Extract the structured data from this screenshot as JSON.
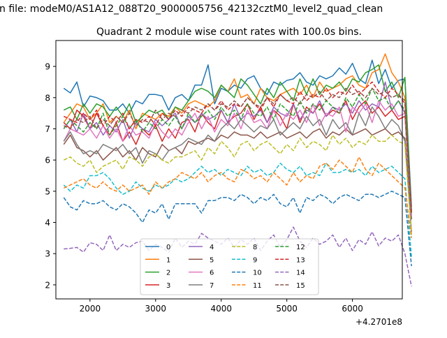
{
  "suptitle": "n file: modeM0/AS1A12_088T20_9000005756_42132cztM0_level2_quad_clean",
  "chart_data": {
    "type": "line",
    "title": "Quadrant 2 module wise count rates with 100.0s bins.",
    "xlabel": "",
    "ylabel": "",
    "x_offset_label": "+4.2701e8",
    "xlim": [
      1480,
      6760
    ],
    "ylim": [
      1.55,
      9.83
    ],
    "xticks": [
      2000,
      3000,
      4000,
      5000,
      6000
    ],
    "yticks": [
      2,
      3,
      4,
      5,
      6,
      7,
      8,
      9
    ],
    "grid": false,
    "legend": {
      "placement": "bottom-center",
      "columns": 4
    },
    "x_start": 1600,
    "x_step": 100,
    "series": [
      {
        "name": "0",
        "color": "#1f77b4",
        "dash": "solid",
        "values": [
          8.3,
          8.15,
          8.5,
          7.7,
          8.05,
          8.0,
          7.9,
          7.6,
          7.6,
          7.8,
          7.5,
          7.9,
          7.8,
          8.1,
          8.1,
          8.05,
          7.6,
          8.0,
          8.1,
          7.9,
          8.4,
          8.4,
          9.05,
          7.8,
          8.3,
          8.2,
          8.4,
          8.3,
          8.6,
          8.7,
          8.3,
          8.1,
          8.5,
          8.4,
          8.55,
          8.6,
          8.8,
          8.5,
          8.4,
          8.7,
          8.6,
          8.7,
          8.95,
          8.75,
          9.1,
          8.6,
          8.45,
          9.2,
          8.45,
          8.9,
          8.3,
          8.55,
          8.6,
          4.5
        ]
      },
      {
        "name": "1",
        "color": "#ff7f0e",
        "dash": "solid",
        "values": [
          7.2,
          7.5,
          7.8,
          7.7,
          7.3,
          7.5,
          7.8,
          7.2,
          7.4,
          7.2,
          7.6,
          7.0,
          7.5,
          7.4,
          7.3,
          7.5,
          7.4,
          7.7,
          7.5,
          7.8,
          7.9,
          7.8,
          7.7,
          7.9,
          8.4,
          8.2,
          8.6,
          8.0,
          8.1,
          7.8,
          8.3,
          8.0,
          7.9,
          8.1,
          8.2,
          8.3,
          8.1,
          8.4,
          8.0,
          8.5,
          8.2,
          8.3,
          8.4,
          8.6,
          8.7,
          8.4,
          8.3,
          8.8,
          8.9,
          9.4,
          8.8,
          8.5,
          8.0,
          4.3
        ]
      },
      {
        "name": "2",
        "color": "#2ca02c",
        "dash": "solid",
        "values": [
          7.6,
          7.7,
          7.3,
          7.8,
          7.5,
          7.8,
          7.7,
          7.4,
          7.7,
          7.4,
          7.8,
          7.2,
          7.4,
          7.6,
          7.5,
          7.6,
          7.3,
          7.7,
          7.6,
          7.9,
          8.2,
          8.3,
          8.2,
          8.0,
          8.4,
          8.2,
          8.0,
          8.6,
          8.4,
          8.1,
          7.8,
          8.3,
          8.0,
          8.5,
          8.2,
          7.9,
          8.6,
          8.1,
          8.6,
          8.1,
          8.4,
          8.3,
          8.5,
          8.2,
          8.6,
          8.5,
          8.8,
          8.9,
          9.05,
          8.2,
          8.5,
          8.0,
          8.65,
          4.3
        ]
      },
      {
        "name": "3",
        "color": "#d62728",
        "dash": "solid",
        "values": [
          7.2,
          7.0,
          7.6,
          7.4,
          7.0,
          7.5,
          7.1,
          6.8,
          7.2,
          6.6,
          6.9,
          6.5,
          7.0,
          6.8,
          7.1,
          6.6,
          7.0,
          6.7,
          7.2,
          7.3,
          6.9,
          7.5,
          7.2,
          7.0,
          7.6,
          7.2,
          7.4,
          7.5,
          7.8,
          7.3,
          7.7,
          7.2,
          7.6,
          7.4,
          7.0,
          7.8,
          7.2,
          7.7,
          7.5,
          7.8,
          7.4,
          7.6,
          7.5,
          7.9,
          7.3,
          7.7,
          7.9,
          7.5,
          7.7,
          7.4,
          7.6,
          7.3,
          7.4,
          4.2
        ]
      },
      {
        "name": "4",
        "color": "#9467bd",
        "dash": "solid",
        "values": [
          7.0,
          7.3,
          6.9,
          7.5,
          7.0,
          7.2,
          6.8,
          7.1,
          6.9,
          7.3,
          6.7,
          7.2,
          7.0,
          6.9,
          7.3,
          7.1,
          7.3,
          7.5,
          7.0,
          7.4,
          7.2,
          7.5,
          7.3,
          7.4,
          7.6,
          7.2,
          7.8,
          7.3,
          7.5,
          7.4,
          7.6,
          7.2,
          7.7,
          7.5,
          7.4,
          7.8,
          7.3,
          7.6,
          7.5,
          7.9,
          7.4,
          7.7,
          7.6,
          7.8,
          7.5,
          7.9,
          7.6,
          7.8,
          7.7,
          8.5,
          7.6,
          7.9,
          7.5,
          4.1
        ]
      },
      {
        "name": "5",
        "color": "#8c564b",
        "dash": "solid",
        "values": [
          6.5,
          6.8,
          6.4,
          6.3,
          6.1,
          6.3,
          6.0,
          6.2,
          6.4,
          6.1,
          6.3,
          6.0,
          6.4,
          6.2,
          6.1,
          6.5,
          6.3,
          6.4,
          6.2,
          6.6,
          6.5,
          6.6,
          6.7,
          6.6,
          6.8,
          6.7,
          6.9,
          6.8,
          6.8,
          6.7,
          6.9,
          6.7,
          6.8,
          6.9,
          6.7,
          6.8,
          6.9,
          6.7,
          6.9,
          7.0,
          6.7,
          6.9,
          6.8,
          7.0,
          6.8,
          6.9,
          7.0,
          6.8,
          6.9,
          7.0,
          6.8,
          6.9,
          6.7,
          4.1
        ]
      },
      {
        "name": "6",
        "color": "#e377c2",
        "dash": "solid",
        "values": [
          6.6,
          7.0,
          6.9,
          6.8,
          7.0,
          6.7,
          7.1,
          6.7,
          7.0,
          6.6,
          7.1,
          6.8,
          6.9,
          6.7,
          7.2,
          6.9,
          6.7,
          7.0,
          6.8,
          7.2,
          7.5,
          7.0,
          7.4,
          6.9,
          7.3,
          7.1,
          7.5,
          7.0,
          7.6,
          7.2,
          7.3,
          7.0,
          7.6,
          7.1,
          7.5,
          7.3,
          7.6,
          7.2,
          7.8,
          7.1,
          7.5,
          7.4,
          7.7,
          6.9,
          7.7,
          7.5,
          7.8,
          7.2,
          7.9,
          7.6,
          7.8,
          7.4,
          7.5,
          4.2
        ]
      },
      {
        "name": "7",
        "color": "#7f7f7f",
        "dash": "solid",
        "values": [
          6.6,
          6.9,
          6.5,
          6.2,
          6.3,
          6.2,
          6.5,
          6.4,
          6.3,
          6.5,
          6.2,
          6.4,
          5.9,
          6.3,
          6.2,
          6.0,
          6.3,
          6.4,
          6.5,
          6.7,
          6.6,
          6.5,
          6.8,
          6.6,
          7.0,
          7.2,
          7.0,
          7.3,
          7.1,
          6.9,
          7.1,
          7.0,
          7.3,
          6.8,
          7.0,
          7.2,
          7.0,
          7.4,
          7.1,
          7.3,
          6.8,
          7.3,
          7.0,
          7.2,
          6.8,
          7.5,
          7.1,
          7.7,
          7.4,
          7.0,
          7.3,
          7.1,
          6.6,
          3.7
        ]
      },
      {
        "name": "8",
        "color": "#bcbd22",
        "dash": "dashed",
        "values": [
          6.0,
          6.1,
          5.9,
          5.8,
          6.0,
          5.6,
          5.8,
          5.9,
          6.0,
          5.7,
          6.1,
          6.0,
          5.8,
          6.1,
          6.2,
          6.0,
          5.9,
          6.1,
          6.1,
          6.2,
          6.3,
          6.0,
          6.4,
          6.2,
          6.6,
          6.4,
          6.1,
          6.5,
          6.6,
          6.3,
          6.5,
          6.6,
          6.4,
          6.2,
          6.5,
          6.3,
          6.7,
          6.4,
          6.6,
          6.5,
          6.3,
          6.8,
          6.5,
          6.7,
          6.4,
          6.6,
          6.5,
          6.8,
          6.6,
          6.6,
          6.8,
          6.6,
          6.5,
          3.6
        ]
      },
      {
        "name": "9",
        "color": "#17becf",
        "dash": "dashed",
        "values": [
          5.2,
          5.0,
          5.2,
          5.1,
          5.5,
          5.5,
          5.6,
          5.4,
          5.1,
          4.9,
          5.0,
          5.3,
          5.1,
          5.0,
          5.2,
          5.1,
          5.2,
          5.4,
          5.3,
          5.4,
          5.6,
          5.8,
          5.6,
          5.7,
          5.5,
          5.7,
          5.6,
          5.5,
          5.8,
          5.6,
          5.7,
          5.5,
          5.6,
          5.9,
          5.7,
          5.6,
          5.8,
          5.5,
          5.6,
          5.5,
          5.9,
          5.6,
          5.6,
          5.7,
          5.6,
          5.7,
          5.5,
          5.8,
          5.6,
          5.7,
          5.8,
          5.6,
          5.4,
          2.9
        ]
      },
      {
        "name": "10",
        "color": "#1f77b4",
        "dash": "dashed",
        "values": [
          4.8,
          4.5,
          4.4,
          4.7,
          4.6,
          4.6,
          4.7,
          4.5,
          4.4,
          4.6,
          4.5,
          4.3,
          4.0,
          4.4,
          4.3,
          4.6,
          4.1,
          4.6,
          4.6,
          4.6,
          4.6,
          4.3,
          4.7,
          4.7,
          4.8,
          4.8,
          4.7,
          4.9,
          4.8,
          4.6,
          4.8,
          4.7,
          4.9,
          4.6,
          4.5,
          4.8,
          4.3,
          4.8,
          4.7,
          4.9,
          4.8,
          4.6,
          4.8,
          4.9,
          4.8,
          4.7,
          4.9,
          4.9,
          4.8,
          4.9,
          5.0,
          4.9,
          4.8,
          2.6
        ]
      },
      {
        "name": "11",
        "color": "#ff7f0e",
        "dash": "dashed",
        "values": [
          5.1,
          5.2,
          5.3,
          5.4,
          5.2,
          5.1,
          5.3,
          5.1,
          5.0,
          5.2,
          5.0,
          5.1,
          5.2,
          4.9,
          5.3,
          5.1,
          5.3,
          5.4,
          5.6,
          5.5,
          5.4,
          5.6,
          5.3,
          5.5,
          5.6,
          5.4,
          5.3,
          5.7,
          5.6,
          5.4,
          5.5,
          5.3,
          5.6,
          5.4,
          5.2,
          5.6,
          5.3,
          5.5,
          5.4,
          5.8,
          5.9,
          5.7,
          6.0,
          5.8,
          5.6,
          6.1,
          5.7,
          5.5,
          5.9,
          5.7,
          5.5,
          5.3,
          5.1,
          3.5
        ]
      },
      {
        "name": "12",
        "color": "#2ca02c",
        "dash": "dashed",
        "values": [
          7.0,
          7.3,
          7.1,
          6.9,
          7.2,
          7.0,
          7.5,
          6.8,
          7.1,
          7.4,
          7.0,
          7.3,
          6.9,
          7.2,
          7.0,
          7.3,
          7.1,
          7.4,
          7.0,
          7.5,
          7.2,
          7.4,
          7.6,
          7.3,
          7.7,
          7.4,
          7.6,
          7.3,
          7.8,
          7.5,
          7.4,
          7.7,
          7.3,
          7.8,
          7.6,
          7.4,
          7.9,
          7.5,
          7.8,
          7.6,
          7.9,
          7.7,
          7.5,
          8.0,
          7.7,
          8.1,
          7.8,
          8.3,
          7.9,
          8.0,
          7.6,
          7.9,
          7.6,
          4.3
        ]
      },
      {
        "name": "13",
        "color": "#d62728",
        "dash": "dashed",
        "values": [
          7.4,
          7.3,
          7.2,
          7.5,
          7.3,
          7.6,
          7.1,
          7.4,
          7.2,
          7.5,
          7.0,
          7.3,
          7.2,
          7.4,
          7.1,
          7.5,
          7.3,
          7.6,
          7.4,
          7.7,
          7.6,
          7.5,
          7.8,
          7.6,
          7.9,
          7.6,
          7.8,
          7.7,
          8.0,
          7.8,
          7.6,
          8.0,
          7.7,
          8.1,
          7.9,
          7.8,
          8.2,
          7.9,
          8.1,
          8.0,
          8.3,
          8.0,
          8.2,
          8.1,
          8.4,
          8.1,
          8.3,
          8.5,
          8.2,
          8.0,
          8.3,
          8.1,
          7.8,
          4.3
        ]
      },
      {
        "name": "14",
        "color": "#9467bd",
        "dash": "dashed",
        "values": [
          3.15,
          3.17,
          3.2,
          3.05,
          3.35,
          3.3,
          3.1,
          3.6,
          3.1,
          3.3,
          3.2,
          3.35,
          3.4,
          3.1,
          3.3,
          3.2,
          3.05,
          3.5,
          3.2,
          3.4,
          3.3,
          3.65,
          3.5,
          3.4,
          3.3,
          3.5,
          3.2,
          3.45,
          3.3,
          3.5,
          3.1,
          3.4,
          3.6,
          3.2,
          3.45,
          3.85,
          3.4,
          3.2,
          3.5,
          3.3,
          3.4,
          3.6,
          3.2,
          3.5,
          3.1,
          3.45,
          3.3,
          3.7,
          3.25,
          3.5,
          3.4,
          3.6,
          3.0,
          1.95
        ]
      },
      {
        "name": "15",
        "color": "#8c564b",
        "dash": "dashed",
        "values": [
          7.1,
          7.0,
          7.3,
          7.2,
          7.4,
          7.0,
          7.3,
          7.1,
          7.4,
          7.2,
          7.5,
          7.1,
          7.3,
          7.2,
          7.6,
          7.3,
          7.5,
          7.4,
          7.6,
          7.5,
          7.7,
          7.6,
          7.8,
          7.6,
          7.8,
          7.7,
          7.9,
          7.7,
          8.0,
          7.8,
          7.7,
          8.0,
          7.8,
          8.1,
          7.9,
          8.0,
          7.8,
          8.1,
          8.0,
          8.2,
          7.9,
          8.1,
          8.0,
          8.3,
          8.1,
          8.2,
          8.0,
          8.3,
          8.1,
          8.2,
          8.0,
          8.1,
          7.9,
          4.4
        ]
      }
    ]
  }
}
